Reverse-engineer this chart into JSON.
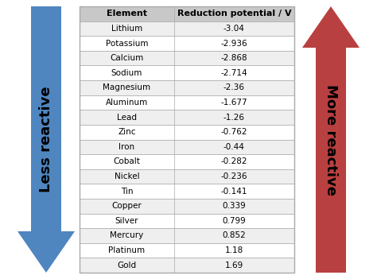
{
  "elements": [
    "Lithium",
    "Potassium",
    "Calcium",
    "Sodium",
    "Magnesium",
    "Aluminum",
    "Lead",
    "Zinc",
    "Iron",
    "Cobalt",
    "Nickel",
    "Tin",
    "Copper",
    "Silver",
    "Mercury",
    "Platinum",
    "Gold"
  ],
  "potentials": [
    "-3.04",
    "-2.936",
    "-2.868",
    "-2.714",
    "-2.36",
    "-1.677",
    "-1.26",
    "-0.762",
    "-0.44",
    "-0.282",
    "-0.236",
    "-0.141",
    "0.339",
    "0.799",
    "0.852",
    "1.18",
    "1.69"
  ],
  "col_headers": [
    "Element",
    "Reduction potential / V"
  ],
  "header_bg": "#c8c8c8",
  "row_bg_even": "#efefef",
  "row_bg_odd": "#ffffff",
  "left_arrow_color": "#4f86c0",
  "right_arrow_color": "#b94040",
  "left_label": "Less reactive",
  "right_label": "More reactive",
  "fig_bg": "#ffffff",
  "table_edge_color": "#aaaaaa",
  "header_fontsize": 8,
  "cell_fontsize": 7.5,
  "arrow_label_fontsize": 13
}
